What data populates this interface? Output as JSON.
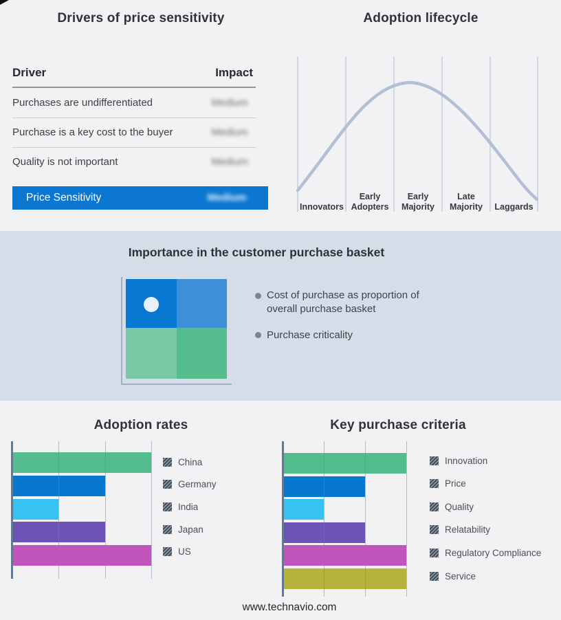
{
  "footer": {
    "url_text": "www.technavio.com"
  },
  "drivers_panel": {
    "title": "Drivers of price sensitivity",
    "columns": {
      "driver": "Driver",
      "impact": "Impact"
    },
    "rows": [
      {
        "driver": "Purchases are undifferentiated",
        "impact": "Medium"
      },
      {
        "driver": "Purchase is a key cost to the buyer",
        "impact": "Medium"
      },
      {
        "driver": "Quality is not important",
        "impact": "Medium"
      }
    ],
    "summary_row": {
      "label": "Price Sensitivity",
      "impact": "Medium",
      "bar_color": "#0b77d1"
    },
    "impact_values_blurred": true
  },
  "lifecycle_panel": {
    "title": "Adoption lifecycle",
    "stages": [
      "Innovators",
      "Early Adopters",
      "Early Majority",
      "Late Majority",
      "Laggards"
    ],
    "curve_color": "#b3bfd3",
    "divider_color": "#aebbcf"
  },
  "basket_panel": {
    "title": "Importance in the customer purchase basket",
    "bullets": [
      "Cost of purchase as proportion of overall purchase basket",
      "Purchase criticality"
    ],
    "band_color": "#d4dde8",
    "quadrant_colors": {
      "top_left": "#0978d3",
      "top_right": "#3d8fd8",
      "bottom_left": "#7ac8a3",
      "bottom_right": "#55bd8d"
    },
    "marker_dot_color": "#e9f2fb"
  },
  "chart_data": [
    {
      "type": "line",
      "title": "Adoption lifecycle",
      "x_categories": [
        "Innovators",
        "Early Adopters",
        "Early Majority",
        "Late Majority",
        "Laggards"
      ],
      "shape": "bell curve rising from Innovators, peaking over Early Majority, falling through Laggards",
      "y_axis": "hidden",
      "grid": "vertical stage dividers",
      "legend_position": "none"
    },
    {
      "type": "bar",
      "orientation": "horizontal",
      "title": "Adoption rates",
      "categories": [
        "China",
        "Germany",
        "India",
        "Japan",
        "US"
      ],
      "values": [
        3,
        2,
        1,
        2,
        3
      ],
      "colors": [
        "#53bd8d",
        "#0678d0",
        "#36c3f3",
        "#6e53b6",
        "#c055bd"
      ],
      "xlim": [
        0,
        3
      ],
      "xlabel": "",
      "ylabel": "",
      "axis_tick_labels": "none",
      "grid": "vertical",
      "legend_position": "right"
    },
    {
      "type": "bar",
      "orientation": "horizontal",
      "title": "Key purchase criteria",
      "categories": [
        "Innovation",
        "Price",
        "Quality",
        "Relatability",
        "Regulatory Compliance",
        "Service"
      ],
      "values": [
        3,
        2,
        1,
        2,
        3,
        3
      ],
      "colors": [
        "#53bd8d",
        "#0678d0",
        "#36c3f3",
        "#6e53b6",
        "#c055bd",
        "#b7b43c"
      ],
      "xlim": [
        0,
        3
      ],
      "xlabel": "",
      "ylabel": "",
      "axis_tick_labels": "none",
      "grid": "vertical",
      "legend_position": "right"
    },
    {
      "type": "table",
      "title": "Drivers of price sensitivity",
      "columns": [
        "Driver",
        "Impact"
      ],
      "rows": [
        [
          "Purchases are undifferentiated",
          "Medium"
        ],
        [
          "Purchase is a key cost to the buyer",
          "Medium"
        ],
        [
          "Quality is not important",
          "Medium"
        ],
        [
          "Price Sensitivity",
          "Medium"
        ]
      ]
    }
  ]
}
